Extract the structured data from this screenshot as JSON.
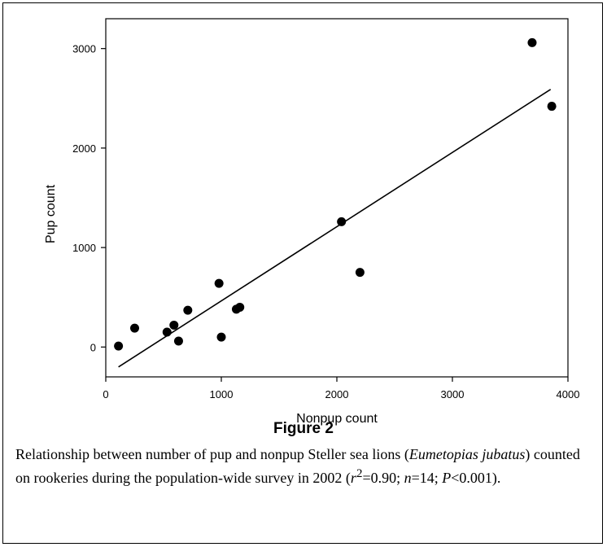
{
  "chart_data": {
    "type": "scatter",
    "xlabel": "Nonpup count",
    "ylabel": "Pup count",
    "xlim": [
      0,
      4000
    ],
    "ylim": [
      -300,
      3300
    ],
    "x_ticks": [
      0,
      1000,
      2000,
      3000,
      4000
    ],
    "y_ticks": [
      0,
      1000,
      2000,
      3000
    ],
    "grid": false,
    "points": [
      {
        "x": 110,
        "y": 10
      },
      {
        "x": 250,
        "y": 190
      },
      {
        "x": 530,
        "y": 150
      },
      {
        "x": 590,
        "y": 220
      },
      {
        "x": 630,
        "y": 60
      },
      {
        "x": 710,
        "y": 370
      },
      {
        "x": 980,
        "y": 640
      },
      {
        "x": 1000,
        "y": 100
      },
      {
        "x": 1130,
        "y": 380
      },
      {
        "x": 1160,
        "y": 400
      },
      {
        "x": 2040,
        "y": 1260
      },
      {
        "x": 2200,
        "y": 750
      },
      {
        "x": 3690,
        "y": 3060
      },
      {
        "x": 3860,
        "y": 2420
      }
    ],
    "regression_line": {
      "x": [
        110,
        3850
      ],
      "y": [
        -200,
        2590
      ]
    }
  },
  "figure": {
    "title": "Figure 2",
    "caption_part1": "Relationship between number of pup and nonpup Steller sea lions (",
    "caption_species": "Eumetopias jubatus",
    "caption_part2": ") counted on rookeries during the population-wide survey in 2002 (",
    "caption_r": "r",
    "caption_exp": "2",
    "caption_part3": "=0.90; ",
    "caption_n": "n",
    "caption_part4": "=14; ",
    "caption_p": "P",
    "caption_part5": "<0.001)."
  }
}
